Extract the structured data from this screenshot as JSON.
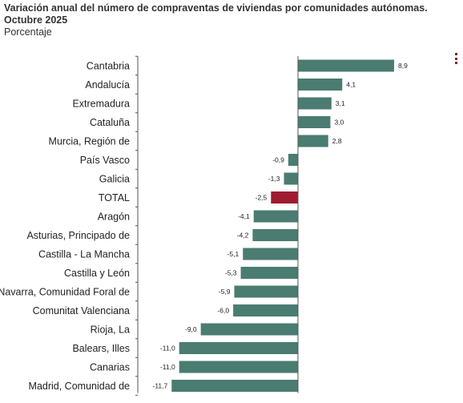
{
  "title": "Variación anual del número de compraventas de viviendas por comunidades autónomas. Octubre 2025",
  "menu": {
    "icon": "more-vertical-icon"
  },
  "colors": {
    "positive": "#4a7c72",
    "negative": "#4a7c72",
    "highlight": "#9e1b32",
    "axis": "#555555"
  },
  "chart_data": {
    "type": "bar",
    "orientation": "horizontal",
    "title": "Variación anual del número de compraventas de viviendas por comunidades autónomas. Octubre 2025",
    "subtitle": "Porcentaje",
    "categories": [
      "Cantabria",
      "Andalucía",
      "Extremadura",
      "Cataluña",
      "Murcia, Región de",
      "País Vasco",
      "Galicia",
      "TOTAL",
      "Aragón",
      "Asturias, Principado de",
      "Castilla - La Mancha",
      "Castilla y León",
      "Navarra, Comunidad Foral de",
      "Comunitat Valenciana",
      "Rioja, La",
      "Balears, Illes",
      "Canarias",
      "Madrid, Comunidad de"
    ],
    "values": [
      8.9,
      4.1,
      3.1,
      3.0,
      2.8,
      -0.9,
      -1.3,
      -2.5,
      -4.1,
      -4.2,
      -5.1,
      -5.3,
      -5.9,
      -6.0,
      -9.0,
      -11.0,
      -11.0,
      -11.7
    ],
    "value_labels": [
      "8,9",
      "4,1",
      "3,1",
      "3,0",
      "2,8",
      "-0,9",
      "-1,3",
      "-2,5",
      "-4,1",
      "-4,2",
      "-5,1",
      "-5,3",
      "-5,9",
      "-6,0",
      "-9,0",
      "-11,0",
      "-11,0",
      "-11,7"
    ],
    "highlight_category": "TOTAL",
    "xlim": [
      -11.7,
      8.9
    ],
    "grid": false,
    "legend": "none"
  }
}
